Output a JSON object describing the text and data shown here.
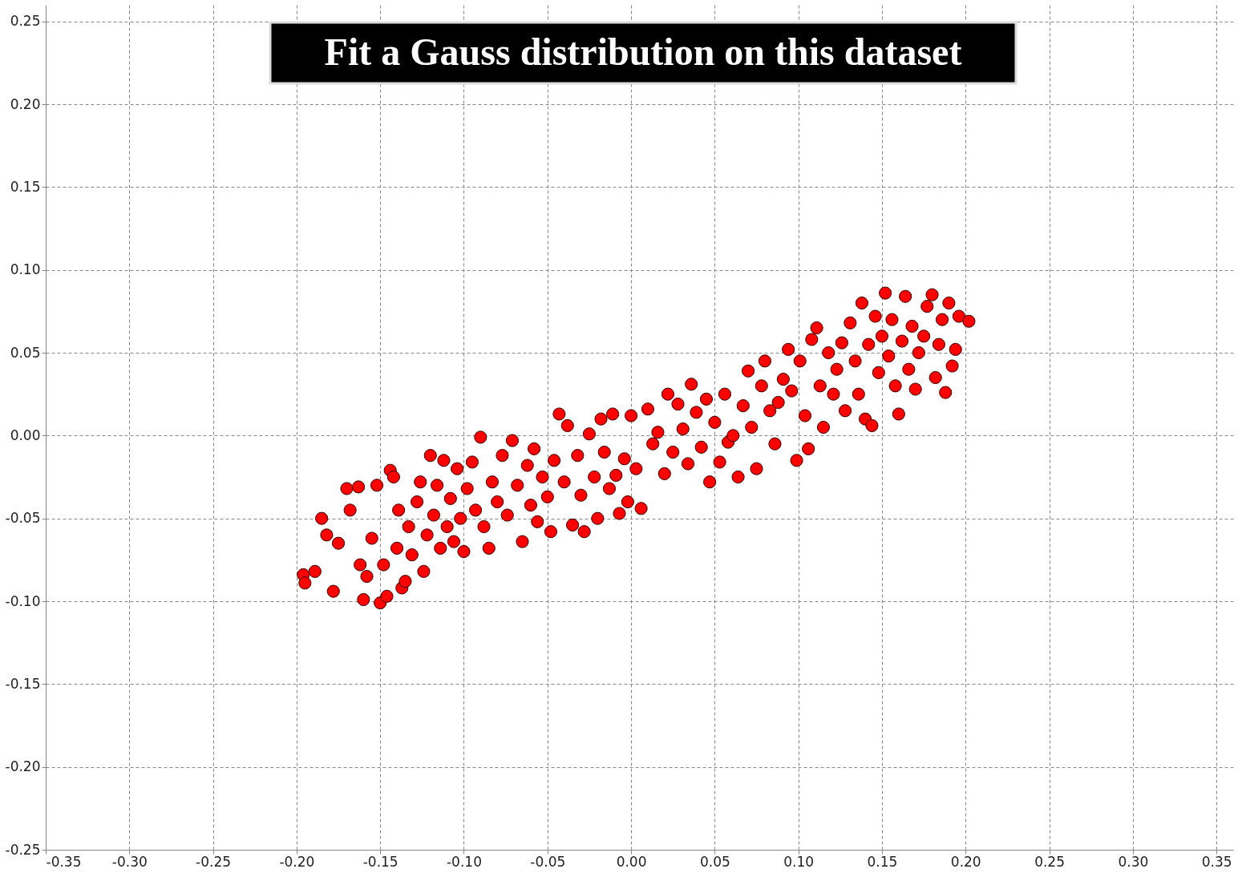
{
  "chart_data": {
    "type": "scatter",
    "title": "Fit a Gauss distribution on this dataset",
    "marker": "circle",
    "grid": true,
    "xlim": [
      -0.35,
      0.36
    ],
    "ylim": [
      -0.25,
      0.26
    ],
    "xticks": [
      {
        "value": -0.35,
        "label": "-0.35"
      },
      {
        "value": -0.3,
        "label": "-0.30"
      },
      {
        "value": -0.25,
        "label": "-0.25"
      },
      {
        "value": -0.2,
        "label": "-0.20"
      },
      {
        "value": -0.15,
        "label": "-0.15"
      },
      {
        "value": -0.1,
        "label": "-0.10"
      },
      {
        "value": -0.05,
        "label": "-0.05"
      },
      {
        "value": 0,
        "label": "0.00"
      },
      {
        "value": 0.05,
        "label": "0.05"
      },
      {
        "value": 0.1,
        "label": "0.10"
      },
      {
        "value": 0.15,
        "label": "0.15"
      },
      {
        "value": 0.2,
        "label": "0.20"
      },
      {
        "value": 0.25,
        "label": "0.25"
      },
      {
        "value": 0.3,
        "label": "0.30"
      },
      {
        "value": 0.35,
        "label": "0.35"
      }
    ],
    "yticks": [
      {
        "value": -0.25,
        "label": "-0.25"
      },
      {
        "value": -0.2,
        "label": "-0.20"
      },
      {
        "value": -0.15,
        "label": "-0.15"
      },
      {
        "value": -0.1,
        "label": "-0.10"
      },
      {
        "value": -0.05,
        "label": "-0.05"
      },
      {
        "value": 0,
        "label": "0.00"
      },
      {
        "value": 0.05,
        "label": "0.05"
      },
      {
        "value": 0.1,
        "label": "0.10"
      },
      {
        "value": 0.15,
        "label": "0.15"
      },
      {
        "value": 0.2,
        "label": "0.20"
      },
      {
        "value": 0.25,
        "label": "0.25"
      }
    ],
    "series": [
      {
        "color": "#ff0000",
        "x": [
          -0.196,
          -0.195,
          -0.189,
          -0.178,
          -0.185,
          -0.182,
          -0.175,
          -0.17,
          -0.168,
          -0.163,
          -0.162,
          -0.16,
          -0.158,
          -0.155,
          -0.152,
          -0.15,
          -0.148,
          -0.146,
          -0.144,
          -0.142,
          -0.14,
          -0.139,
          -0.137,
          -0.135,
          -0.133,
          -0.131,
          -0.128,
          -0.126,
          -0.124,
          -0.122,
          -0.12,
          -0.118,
          -0.116,
          -0.114,
          -0.112,
          -0.11,
          -0.108,
          -0.106,
          -0.104,
          -0.102,
          -0.1,
          -0.098,
          -0.095,
          -0.093,
          -0.09,
          -0.088,
          -0.085,
          -0.083,
          -0.08,
          -0.077,
          -0.074,
          -0.071,
          -0.068,
          -0.065,
          -0.062,
          -0.06,
          -0.058,
          -0.056,
          -0.053,
          -0.05,
          -0.048,
          -0.046,
          -0.043,
          -0.04,
          -0.038,
          -0.035,
          -0.032,
          -0.03,
          -0.028,
          -0.025,
          -0.022,
          -0.02,
          -0.018,
          -0.016,
          -0.013,
          -0.011,
          -0.009,
          -0.007,
          -0.004,
          -0.002,
          0.0,
          0.003,
          0.006,
          0.01,
          0.013,
          0.016,
          0.02,
          0.022,
          0.025,
          0.028,
          0.031,
          0.034,
          0.036,
          0.039,
          0.042,
          0.045,
          0.047,
          0.05,
          0.053,
          0.056,
          0.058,
          0.061,
          0.064,
          0.067,
          0.07,
          0.072,
          0.075,
          0.078,
          0.08,
          0.083,
          0.086,
          0.088,
          0.091,
          0.094,
          0.096,
          0.099,
          0.101,
          0.104,
          0.106,
          0.108,
          0.111,
          0.113,
          0.115,
          0.118,
          0.121,
          0.123,
          0.126,
          0.128,
          0.131,
          0.134,
          0.136,
          0.138,
          0.14,
          0.142,
          0.144,
          0.146,
          0.148,
          0.15,
          0.152,
          0.154,
          0.156,
          0.158,
          0.16,
          0.162,
          0.164,
          0.166,
          0.168,
          0.17,
          0.172,
          0.175,
          0.177,
          0.18,
          0.182,
          0.184,
          0.186,
          0.188,
          0.19,
          0.192,
          0.194,
          0.196,
          0.202
        ],
        "values": [
          -0.084,
          -0.089,
          -0.082,
          -0.094,
          -0.05,
          -0.06,
          -0.065,
          -0.032,
          -0.045,
          -0.031,
          -0.078,
          -0.099,
          -0.085,
          -0.062,
          -0.03,
          -0.101,
          -0.078,
          -0.097,
          -0.021,
          -0.025,
          -0.068,
          -0.045,
          -0.092,
          -0.088,
          -0.055,
          -0.072,
          -0.04,
          -0.028,
          -0.082,
          -0.06,
          -0.012,
          -0.048,
          -0.03,
          -0.068,
          -0.015,
          -0.055,
          -0.038,
          -0.064,
          -0.02,
          -0.05,
          -0.07,
          -0.032,
          -0.016,
          -0.045,
          -0.001,
          -0.055,
          -0.068,
          -0.028,
          -0.04,
          -0.012,
          -0.048,
          -0.003,
          -0.03,
          -0.064,
          -0.018,
          -0.042,
          -0.008,
          -0.052,
          -0.025,
          -0.037,
          -0.058,
          -0.015,
          0.013,
          -0.028,
          0.006,
          -0.054,
          -0.012,
          -0.036,
          -0.058,
          0.001,
          -0.025,
          -0.05,
          0.01,
          -0.01,
          -0.032,
          0.013,
          -0.024,
          -0.047,
          -0.014,
          -0.04,
          0.012,
          -0.02,
          -0.044,
          0.016,
          -0.005,
          0.002,
          -0.023,
          0.025,
          -0.01,
          0.019,
          0.004,
          -0.017,
          0.031,
          0.014,
          -0.007,
          0.022,
          -0.028,
          0.008,
          -0.016,
          0.025,
          -0.004,
          0.0,
          -0.025,
          0.018,
          0.039,
          0.005,
          -0.02,
          0.03,
          0.045,
          0.015,
          -0.005,
          0.02,
          0.034,
          0.052,
          0.027,
          -0.015,
          0.045,
          0.012,
          -0.008,
          0.058,
          0.065,
          0.03,
          0.005,
          0.05,
          0.025,
          0.04,
          0.056,
          0.015,
          0.068,
          0.045,
          0.025,
          0.08,
          0.01,
          0.055,
          0.006,
          0.072,
          0.038,
          0.06,
          0.086,
          0.048,
          0.07,
          0.03,
          0.013,
          0.057,
          0.084,
          0.04,
          0.066,
          0.028,
          0.05,
          0.06,
          0.078,
          0.085,
          0.035,
          0.055,
          0.07,
          0.026,
          0.08,
          0.042,
          0.052,
          0.072,
          0.069
        ]
      }
    ]
  }
}
